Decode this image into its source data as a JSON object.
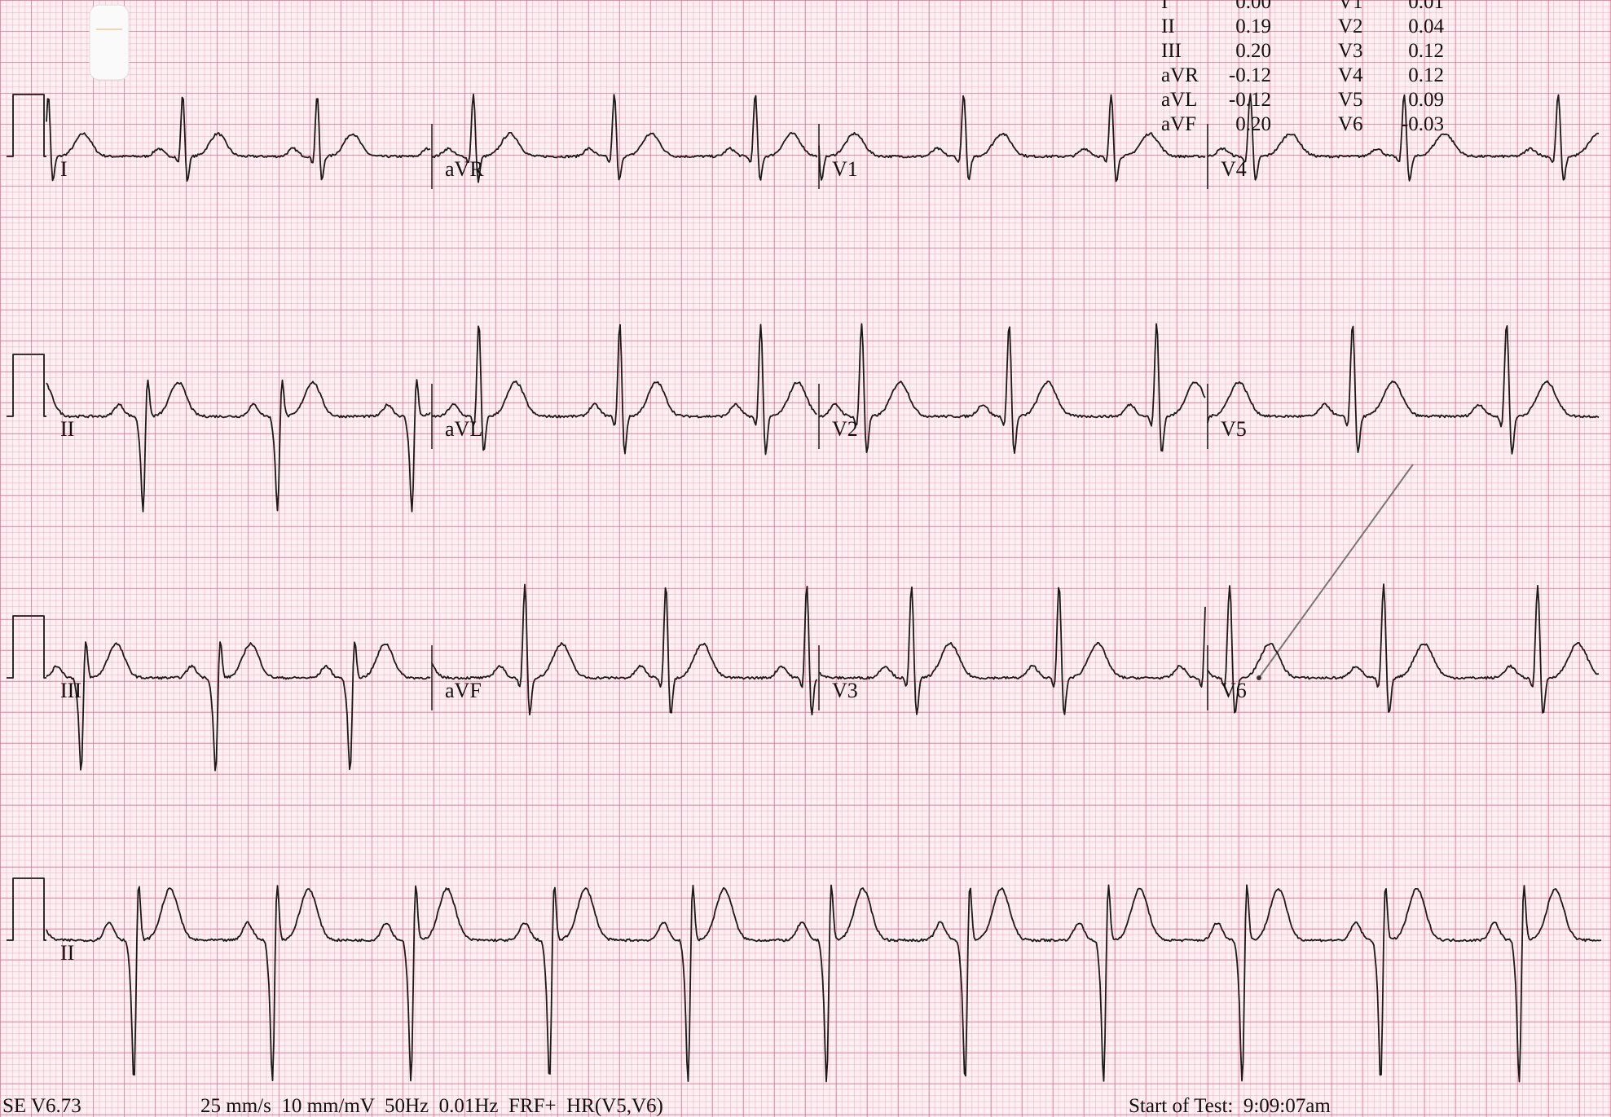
{
  "leads": [
    [
      "I",
      "aVR",
      "V1",
      "V4"
    ],
    [
      "II",
      "aVL",
      "V2",
      "V5"
    ],
    [
      "III",
      "aVF",
      "V3",
      "V6"
    ],
    [
      "II"
    ]
  ],
  "measurements": [
    [
      "I",
      "0.00",
      "V1",
      "0.01"
    ],
    [
      "II",
      "0.19",
      "V2",
      "0.04"
    ],
    [
      "III",
      "0.20",
      "V3",
      "0.12"
    ],
    [
      "aVR",
      "-0.12",
      "V4",
      "0.12"
    ],
    [
      "aVL",
      "-0.12",
      "V5",
      "0.09"
    ],
    [
      "aVF",
      "0.20",
      "V6",
      "-0.03"
    ]
  ],
  "footer": {
    "version": "SE V6.73",
    "settings": "25 mm/s  10 mm/mV  50Hz  0.01Hz  FRF+  HR(V5,V6)",
    "start": "Start of Test:  9:09:07am"
  }
}
